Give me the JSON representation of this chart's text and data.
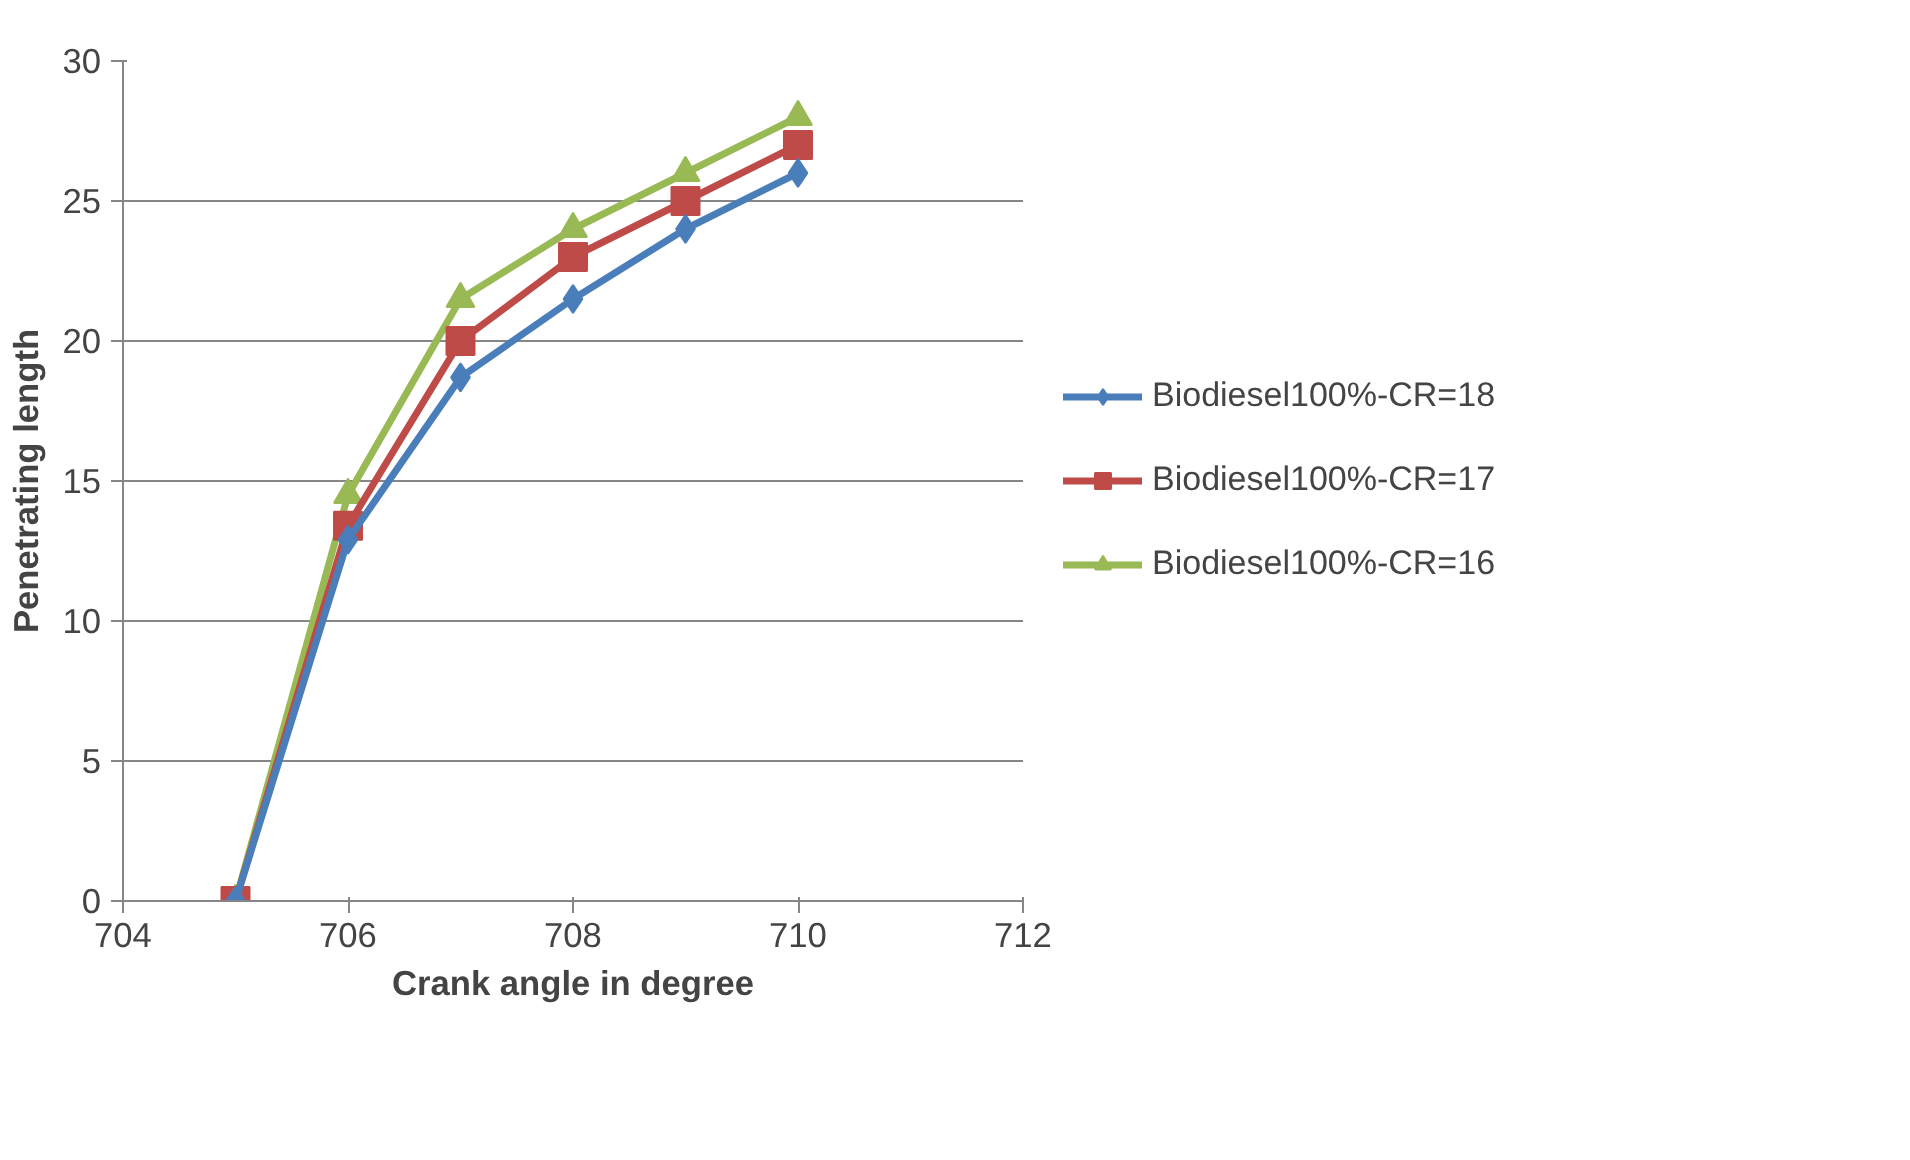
{
  "chart_data": {
    "type": "line",
    "xlabel": "Crank angle in degree",
    "ylabel": "Penetrating length",
    "x": [
      705,
      706,
      707,
      708,
      709,
      710
    ],
    "series": [
      {
        "name": "Biodiesel100%-CR=18",
        "color": "#4a7ebb",
        "marker": "diamond",
        "values": [
          0,
          12.9,
          18.7,
          21.5,
          24,
          26
        ]
      },
      {
        "name": "Biodiesel100%-CR=17",
        "color": "#be4b48",
        "marker": "square",
        "values": [
          0,
          13.4,
          20,
          23,
          25,
          27
        ]
      },
      {
        "name": "Biodiesel100%-CR=16",
        "color": "#98b954",
        "marker": "triangle",
        "values": [
          0,
          14.5,
          21.5,
          24,
          26,
          28
        ]
      }
    ],
    "xlim": [
      704,
      712
    ],
    "xticks": [
      704,
      706,
      708,
      710,
      712
    ],
    "ylim": [
      0,
      30
    ],
    "yticks": [
      0,
      5,
      10,
      15,
      20,
      25,
      30
    ],
    "grid": "y",
    "legend": "right",
    "line_style": "solid"
  }
}
